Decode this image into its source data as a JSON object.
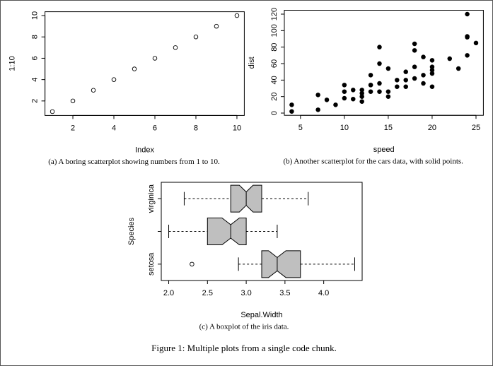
{
  "chart_data": [
    {
      "type": "scatter",
      "marker": "open",
      "color": "#000000",
      "x": [
        1,
        2,
        3,
        4,
        5,
        6,
        7,
        8,
        9,
        10
      ],
      "values": [
        1,
        2,
        3,
        4,
        5,
        6,
        7,
        8,
        9,
        10
      ],
      "xlim": [
        0.64,
        10.36
      ],
      "ylim": [
        0.64,
        10.36
      ],
      "xticks": [
        2,
        4,
        6,
        8,
        10
      ],
      "yticks": [
        2,
        4,
        6,
        8,
        10
      ],
      "x_label": "Index",
      "y_label": "1:10",
      "caption": "(a) A boring scatterplot showing numbers from 1 to 10."
    },
    {
      "type": "scatter",
      "marker": "filled",
      "color": "#000000",
      "x": [
        4,
        4,
        7,
        7,
        8,
        9,
        10,
        10,
        10,
        11,
        11,
        12,
        12,
        12,
        12,
        13,
        13,
        13,
        13,
        14,
        14,
        14,
        14,
        15,
        15,
        15,
        16,
        16,
        17,
        17,
        17,
        18,
        18,
        18,
        18,
        19,
        19,
        19,
        20,
        20,
        20,
        20,
        20,
        22,
        23,
        24,
        24,
        24,
        24,
        25
      ],
      "values": [
        2,
        10,
        4,
        22,
        16,
        10,
        18,
        26,
        34,
        17,
        28,
        14,
        20,
        24,
        28,
        26,
        34,
        34,
        46,
        26,
        36,
        60,
        80,
        20,
        26,
        54,
        32,
        40,
        32,
        40,
        50,
        42,
        56,
        76,
        84,
        36,
        46,
        68,
        32,
        48,
        52,
        56,
        64,
        66,
        54,
        70,
        92,
        93,
        120,
        85
      ],
      "xlim": [
        3.16,
        25.84
      ],
      "ylim": [
        -2.72,
        124.72
      ],
      "xticks": [
        5,
        10,
        15,
        20,
        25
      ],
      "yticks": [
        0,
        20,
        40,
        60,
        80,
        100,
        120
      ],
      "x_label": "speed",
      "y_label": "dist",
      "caption": "(b) Another scatterplot for the cars data, with solid points."
    },
    {
      "type": "boxplot",
      "color": "#bfbfbf",
      "orientation": "horizontal",
      "categories": [
        "setosa",
        null,
        "virginica"
      ],
      "boxes": [
        {
          "min": 2.9,
          "q1": 3.2,
          "median": 3.4,
          "q3": 3.7,
          "max": 4.4,
          "notch": [
            3.288,
            3.512
          ],
          "outliers": [
            2.3
          ]
        },
        {
          "min": 2.0,
          "q1": 2.5,
          "median": 2.8,
          "q3": 3.0,
          "max": 3.4,
          "notch": [
            2.688,
            2.912
          ],
          "outliers": []
        },
        {
          "min": 2.2,
          "q1": 2.8,
          "median": 3.0,
          "q3": 3.2,
          "max": 3.8,
          "notch": [
            2.911,
            3.089
          ],
          "outliers": []
        }
      ],
      "xlim": [
        1.904,
        4.496
      ],
      "xticks": [
        {
          "value": 2,
          "label": "2.0"
        },
        2.5,
        {
          "value": 3,
          "label": "3.0"
        },
        3.5,
        {
          "value": 4,
          "label": "4.0"
        }
      ],
      "x_label": "Sepal.Width",
      "y_label": "Species",
      "caption": "(c) A boxplot of the iris data."
    }
  ],
  "caption": "Figure 1: Multiple plots from a single code chunk."
}
